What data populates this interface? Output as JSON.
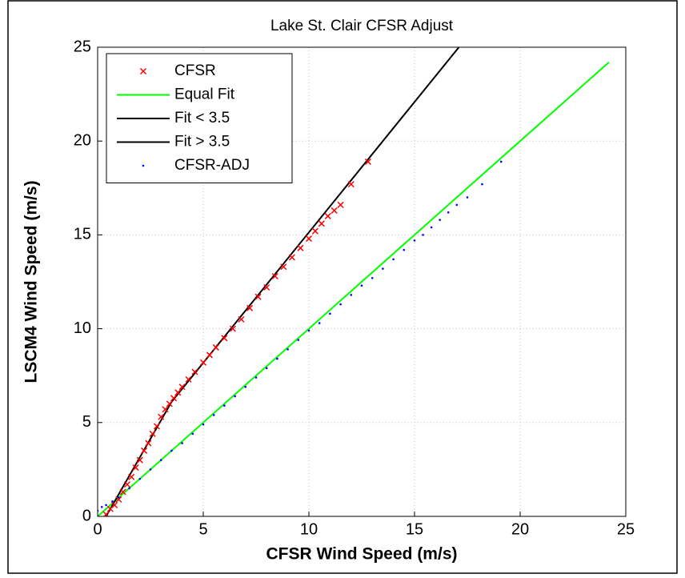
{
  "chart_data": {
    "type": "scatter",
    "title": "Lake St. Clair CFSR Adjust",
    "x_label": "CFSR Wind Speed (m/s)",
    "y_label": "LSCM4 Wind Speed (m/s)",
    "xlim": [
      0,
      25
    ],
    "ylim": [
      0,
      25
    ],
    "xticks": [
      0,
      5,
      10,
      15,
      20,
      25
    ],
    "yticks": [
      0,
      5,
      10,
      15,
      20,
      25
    ],
    "grid": true,
    "legend": "upper-left",
    "series": [
      {
        "name": "CFSR",
        "color": "#ff0000",
        "mode": "x-markers",
        "x": [
          0.4,
          0.6,
          0.8,
          1.0,
          1.2,
          1.4,
          1.6,
          1.8,
          2.0,
          2.2,
          2.4,
          2.6,
          2.8,
          3.0,
          3.2,
          3.4,
          3.6,
          3.8,
          4.0,
          4.3,
          4.6,
          5.0,
          5.3,
          5.6,
          6.0,
          6.4,
          6.8,
          7.2,
          7.6,
          8.0,
          8.4,
          8.8,
          9.2,
          9.6,
          10.0,
          10.3,
          10.6,
          10.9,
          11.2,
          11.5,
          12.0,
          12.8
        ],
        "values": [
          0.1,
          0.4,
          0.6,
          0.9,
          1.3,
          1.7,
          2.1,
          2.6,
          3.0,
          3.5,
          3.9,
          4.4,
          4.8,
          5.3,
          5.7,
          6.0,
          6.3,
          6.6,
          6.9,
          7.3,
          7.7,
          8.2,
          8.6,
          9.0,
          9.5,
          10.0,
          10.5,
          11.1,
          11.7,
          12.2,
          12.8,
          13.3,
          13.8,
          14.3,
          14.8,
          15.2,
          15.6,
          16.0,
          16.3,
          16.6,
          17.7,
          18.9
        ]
      },
      {
        "name": "Equal Fit",
        "color": "#00ff00",
        "mode": "line",
        "x": [
          0,
          24.2
        ],
        "values": [
          0,
          24.2
        ]
      },
      {
        "name": "Fit < 3.5",
        "color": "#000000",
        "mode": "line",
        "x": [
          0.4,
          3.5
        ],
        "values": [
          0,
          6.1
        ]
      },
      {
        "name": "Fit > 3.5",
        "color": "#000000",
        "mode": "line",
        "x": [
          3.5,
          17.1
        ],
        "values": [
          6.1,
          25
        ]
      },
      {
        "name": "CFSR-ADJ",
        "color": "#0000ff",
        "mode": "dots",
        "x": [
          0.0,
          0.2,
          0.4,
          0.7,
          1.0,
          1.5,
          2.0,
          2.5,
          3.0,
          3.5,
          4.0,
          4.5,
          5.0,
          5.5,
          6.0,
          6.5,
          7.0,
          7.5,
          8.0,
          8.5,
          9.0,
          9.5,
          10.0,
          10.5,
          11.0,
          11.5,
          12.0,
          12.5,
          13.0,
          13.5,
          14.0,
          14.5,
          15.0,
          15.4,
          15.8,
          16.2,
          16.6,
          17.0,
          17.5,
          18.2,
          19.1
        ],
        "values": [
          0.3,
          0.5,
          0.6,
          0.8,
          1.0,
          1.5,
          2.0,
          2.5,
          3.0,
          3.5,
          3.9,
          4.4,
          4.9,
          5.4,
          5.9,
          6.4,
          6.9,
          7.4,
          7.9,
          8.4,
          8.9,
          9.4,
          9.9,
          10.3,
          10.8,
          11.3,
          11.8,
          12.3,
          12.7,
          13.2,
          13.7,
          14.2,
          14.7,
          15.0,
          15.4,
          15.8,
          16.2,
          16.6,
          17.0,
          17.7,
          18.9
        ]
      }
    ]
  }
}
